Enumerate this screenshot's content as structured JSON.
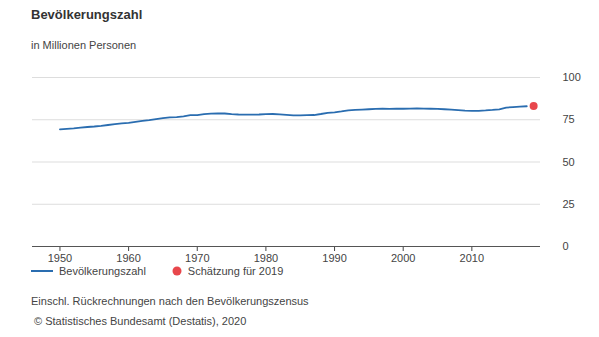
{
  "chart_data": {
    "type": "line",
    "title": "Bevölkerungszahl",
    "subtitle": "in Millionen Personen",
    "x": [
      1950,
      1951,
      1952,
      1953,
      1954,
      1955,
      1956,
      1957,
      1958,
      1959,
      1960,
      1961,
      1962,
      1963,
      1964,
      1965,
      1966,
      1967,
      1968,
      1969,
      1970,
      1971,
      1972,
      1973,
      1974,
      1975,
      1976,
      1977,
      1978,
      1979,
      1980,
      1981,
      1982,
      1983,
      1984,
      1985,
      1986,
      1987,
      1988,
      1989,
      1990,
      1991,
      1992,
      1993,
      1994,
      1995,
      1996,
      1997,
      1998,
      1999,
      2000,
      2001,
      2002,
      2003,
      2004,
      2005,
      2006,
      2007,
      2008,
      2009,
      2010,
      2011,
      2012,
      2013,
      2014,
      2015,
      2016,
      2017,
      2018,
      2019
    ],
    "series": [
      {
        "name": "Bevölkerungszahl",
        "type": "line",
        "color": "#2a6db0",
        "values": [
          69.3,
          69.6,
          69.9,
          70.3,
          70.7,
          71.0,
          71.4,
          71.9,
          72.4,
          72.9,
          73.1,
          73.7,
          74.3,
          74.8,
          75.4,
          75.9,
          76.4,
          76.6,
          77.0,
          77.7,
          77.7,
          78.3,
          78.6,
          78.8,
          78.7,
          78.3,
          78.1,
          78.0,
          78.0,
          78.1,
          78.3,
          78.4,
          78.2,
          77.9,
          77.6,
          77.6,
          77.7,
          77.8,
          78.4,
          79.1,
          79.4,
          79.9,
          80.5,
          80.8,
          81.0,
          81.2,
          81.4,
          81.5,
          81.4,
          81.5,
          81.5,
          81.6,
          81.7,
          81.6,
          81.5,
          81.4,
          81.2,
          81.0,
          80.7,
          80.4,
          80.3,
          80.3,
          80.5,
          80.8,
          81.2,
          82.2,
          82.5,
          82.8,
          83.0,
          null
        ]
      },
      {
        "name": "Schätzung für 2019",
        "type": "scatter",
        "marker": "circle",
        "color": "#e8474c",
        "values": [
          null,
          null,
          null,
          null,
          null,
          null,
          null,
          null,
          null,
          null,
          null,
          null,
          null,
          null,
          null,
          null,
          null,
          null,
          null,
          null,
          null,
          null,
          null,
          null,
          null,
          null,
          null,
          null,
          null,
          null,
          null,
          null,
          null,
          null,
          null,
          null,
          null,
          null,
          null,
          null,
          null,
          null,
          null,
          null,
          null,
          null,
          null,
          null,
          null,
          null,
          null,
          null,
          null,
          null,
          null,
          null,
          null,
          null,
          null,
          null,
          null,
          null,
          null,
          null,
          null,
          null,
          null,
          null,
          null,
          83.2
        ]
      }
    ],
    "xlim": [
      1946,
      2020
    ],
    "xticks": [
      1950,
      1960,
      1970,
      1980,
      1990,
      2000,
      2010
    ],
    "ylim": [
      0,
      100
    ],
    "yticks": [
      0,
      25,
      50,
      75,
      100
    ],
    "grid": true,
    "legend": "bottom",
    "notes": [
      "Einschl. Rückrechnungen nach den Bevölkerungszensus",
      "© Statistisches Bundesamt (Destatis), 2020"
    ]
  }
}
